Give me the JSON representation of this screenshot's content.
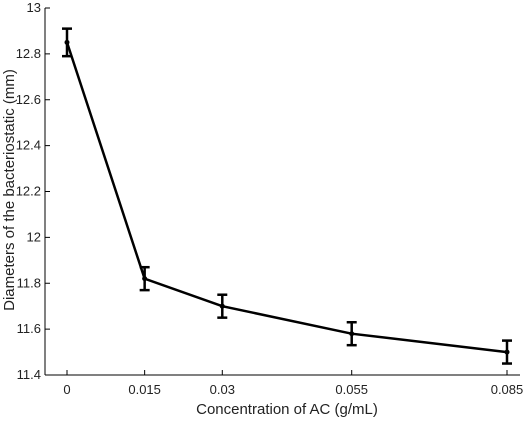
{
  "chart_data": {
    "type": "line",
    "xlabel": "Concentration of AC (g/mL)",
    "ylabel": "Diameters of the bacteriostatic (mm)",
    "x": [
      "0",
      "0.015",
      "0.03",
      "0.055",
      "0.085"
    ],
    "x_values": [
      0,
      0.015,
      0.03,
      0.055,
      0.085
    ],
    "xlim": [
      -0.002,
      0.087
    ],
    "ylim": [
      11.4,
      13
    ],
    "yticks": [
      "11.4",
      "11.6",
      "11.8",
      "12",
      "12.2",
      "12.4",
      "12.6",
      "12.8",
      "13"
    ],
    "ytick_values": [
      11.4,
      11.6,
      11.8,
      12,
      12.2,
      12.4,
      12.6,
      12.8,
      13
    ],
    "grid": false,
    "series": [
      {
        "values": [
          12.85,
          11.82,
          11.7,
          11.58,
          11.5
        ],
        "errors": [
          0.06,
          0.05,
          0.05,
          0.05,
          0.05
        ],
        "color": "#000000"
      }
    ]
  }
}
